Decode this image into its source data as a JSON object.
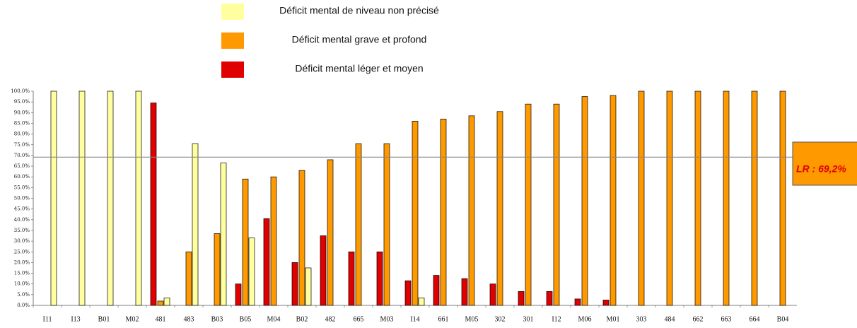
{
  "chart_data": {
    "type": "bar",
    "categories": [
      "I11",
      "I13",
      "B01",
      "M02",
      "481",
      "483",
      "B03",
      "B05",
      "M04",
      "B02",
      "482",
      "665",
      "M03",
      "I14",
      "661",
      "M05",
      "302",
      "301",
      "I12",
      "M06",
      "M01",
      "303",
      "484",
      "662",
      "663",
      "664",
      "B04"
    ],
    "series": [
      {
        "name": "Déficit mental de niveau non précisé",
        "color": "#ffffa0",
        "values": [
          100,
          100,
          100,
          100,
          3.5,
          75.5,
          66.5,
          31.5,
          null,
          17.5,
          null,
          null,
          null,
          3.5,
          null,
          null,
          null,
          null,
          null,
          null,
          null,
          null,
          null,
          null,
          null,
          null,
          null
        ]
      },
      {
        "name": "Déficit mental grave et profond",
        "color": "#ff9900",
        "values": [
          null,
          null,
          null,
          null,
          2,
          25,
          33.5,
          59,
          60,
          63,
          68,
          75.5,
          75.5,
          86,
          87,
          88.5,
          90.5,
          94,
          94,
          97.5,
          98,
          100,
          100,
          100,
          100,
          100,
          100
        ]
      },
      {
        "name": "Déficit mental léger et moyen",
        "color": "#e00000",
        "values": [
          null,
          null,
          null,
          null,
          94.5,
          null,
          null,
          10,
          40.5,
          20,
          32.5,
          25,
          25,
          11.5,
          14,
          12.5,
          10,
          6.5,
          6.5,
          3,
          2.5,
          null,
          null,
          null,
          null,
          null,
          null
        ]
      }
    ],
    "ylim": [
      0,
      100
    ],
    "yticks": [
      {
        "value": 0,
        "label": "0.0%"
      },
      {
        "value": 5,
        "label": "5.0%"
      },
      {
        "value": 10,
        "label": "10.0%"
      },
      {
        "value": 15,
        "label": "15.0%"
      },
      {
        "value": 20,
        "label": "20.0%"
      },
      {
        "value": 25,
        "label": "25.0%"
      },
      {
        "value": 30,
        "label": "30.0%"
      },
      {
        "value": 35,
        "label": "35.0%"
      },
      {
        "value": 40,
        "label": "40.0%"
      },
      {
        "value": 45,
        "label": "45.0%"
      },
      {
        "value": 50,
        "label": "50.0%"
      },
      {
        "value": 55,
        "label": "55.0%"
      },
      {
        "value": 60,
        "label": "60.0%"
      },
      {
        "value": 65,
        "label": "65.0%"
      },
      {
        "value": 70,
        "label": "70.0%"
      },
      {
        "value": 75,
        "label": "75.0%"
      },
      {
        "value": 80,
        "label": "80.0%"
      },
      {
        "value": 85,
        "label": "85.0%"
      },
      {
        "value": 90,
        "label": "90.0%"
      },
      {
        "value": 95,
        "label": "95.0%"
      },
      {
        "value": 100,
        "label": "100.0%"
      }
    ],
    "reference_line": {
      "value": 69.2,
      "label": "LR : 69,2%"
    },
    "grid": false,
    "legend": "top"
  }
}
